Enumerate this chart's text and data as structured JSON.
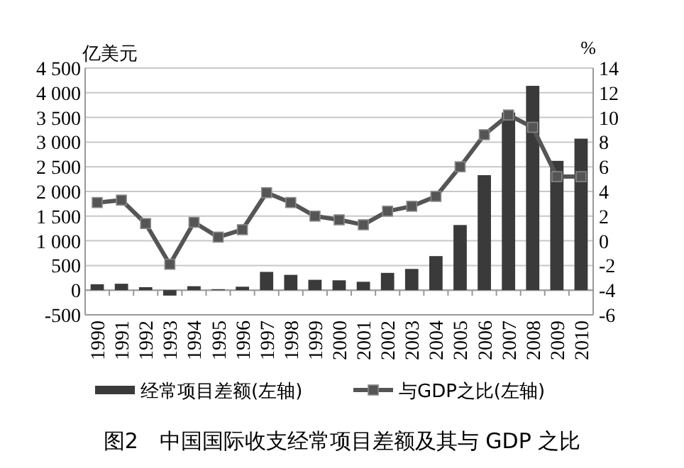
{
  "chart_data": {
    "type": "bar",
    "title": "图2　中国国际收支经常项目差额及其与 GDP 之比",
    "ylabel": "亿美元",
    "y2label": "%",
    "categories": [
      "1990",
      "1991",
      "1992",
      "1993",
      "1994",
      "1995",
      "1996",
      "1997",
      "1998",
      "1999",
      "2000",
      "2001",
      "2002",
      "2003",
      "2004",
      "2005",
      "2006",
      "2007",
      "2008",
      "2009",
      "2010"
    ],
    "series": [
      {
        "name": "经常项目差额(左轴)",
        "color": "#3a3a3a",
        "values": [
          120,
          130,
          60,
          -110,
          80,
          20,
          70,
          370,
          310,
          210,
          200,
          170,
          350,
          430,
          690,
          1320,
          2330,
          3600,
          4140,
          2620,
          3070
        ]
      },
      {
        "name": "与GDP之比(左轴)",
        "type": "line",
        "axis": "y2",
        "color": "#555555",
        "values": [
          3.1,
          3.3,
          1.4,
          -1.9,
          1.5,
          0.3,
          0.9,
          3.9,
          3.1,
          2.0,
          1.7,
          1.3,
          2.4,
          2.8,
          3.6,
          6.0,
          8.6,
          10.2,
          9.2,
          5.2,
          5.2
        ]
      }
    ],
    "ylim": [
      -500,
      4500
    ],
    "yticks": [
      {
        "value": -500,
        "label": "-500"
      },
      0,
      500,
      {
        "value": 1000,
        "label": "1 000"
      },
      {
        "value": 1500,
        "label": "1 500"
      },
      {
        "value": 2000,
        "label": "2 000"
      },
      {
        "value": 2500,
        "label": "2 500"
      },
      {
        "value": 3000,
        "label": "3 000"
      },
      {
        "value": 3500,
        "label": "3 500"
      },
      {
        "value": 4000,
        "label": "4 000"
      },
      {
        "value": 4500,
        "label": "4 500"
      }
    ],
    "y2lim": [
      -6,
      14
    ],
    "y2ticks": [
      -6,
      -4,
      -2,
      0,
      2,
      4,
      6,
      8,
      10,
      12,
      14
    ],
    "grid": "y",
    "legend": "bottom",
    "marker": "square"
  }
}
